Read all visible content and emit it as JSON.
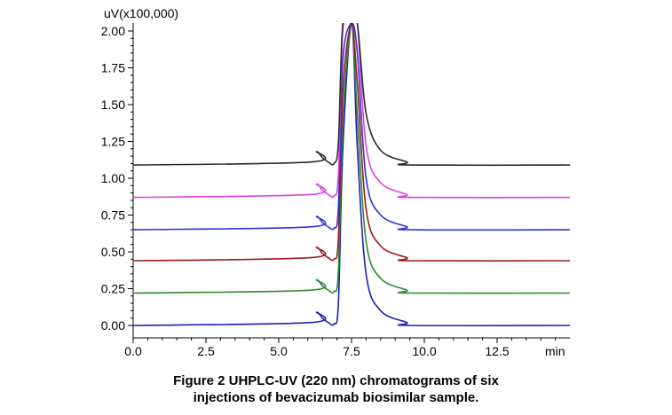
{
  "chart_data": {
    "type": "line",
    "ylabel": "uV(x100,000)",
    "xunit": "min",
    "xlim": [
      0,
      15
    ],
    "ylim": [
      0,
      2.05
    ],
    "x_ticks": [
      "0.0",
      "2.5",
      "5.0",
      "7.5",
      "10.0",
      "12.5"
    ],
    "y_ticks": [
      "0.00",
      "0.25",
      "0.50",
      "0.75",
      "1.00",
      "1.25",
      "1.50",
      "1.75",
      "2.00"
    ],
    "grid": false,
    "legend": "none",
    "series": [
      {
        "color": "#1f1fb4",
        "baseline": 0.0,
        "x": [
          0,
          6.1,
          6.3,
          6.5,
          6.7,
          6.9,
          7.05,
          7.2,
          7.5,
          7.7,
          8.0,
          8.5,
          9.4,
          9.5,
          15
        ],
        "y": [
          0.0,
          0.02,
          0.09,
          0.05,
          0.02,
          0.01,
          0.15,
          1.2,
          2.05,
          1.2,
          0.35,
          0.1,
          0.02,
          0.0,
          0.0
        ]
      },
      {
        "color": "#2e8b2e",
        "baseline": 0.22,
        "x": [
          0,
          6.1,
          6.3,
          6.5,
          6.7,
          6.9,
          7.05,
          7.2,
          7.5,
          7.7,
          8.0,
          8.5,
          9.4,
          9.5,
          15
        ],
        "y": [
          0.22,
          0.24,
          0.31,
          0.27,
          0.24,
          0.23,
          0.37,
          1.4,
          2.05,
          1.42,
          0.57,
          0.32,
          0.24,
          0.22,
          0.22
        ]
      },
      {
        "color": "#9b1c1c",
        "baseline": 0.44,
        "x": [
          0,
          6.1,
          6.3,
          6.5,
          6.7,
          6.9,
          7.05,
          7.2,
          7.5,
          7.7,
          8.0,
          8.5,
          9.4,
          9.5,
          15
        ],
        "y": [
          0.44,
          0.46,
          0.53,
          0.49,
          0.46,
          0.45,
          0.59,
          1.6,
          2.05,
          1.64,
          0.79,
          0.54,
          0.46,
          0.44,
          0.44
        ]
      },
      {
        "color": "#3030e0",
        "baseline": 0.65,
        "x": [
          0,
          6.1,
          6.3,
          6.5,
          6.7,
          6.9,
          7.05,
          7.2,
          7.5,
          7.7,
          8.0,
          8.5,
          9.4,
          9.5,
          15
        ],
        "y": [
          0.65,
          0.67,
          0.74,
          0.7,
          0.67,
          0.66,
          0.8,
          1.8,
          2.05,
          1.85,
          1.0,
          0.75,
          0.67,
          0.65,
          0.65
        ]
      },
      {
        "color": "#e040e0",
        "baseline": 0.87,
        "x": [
          0,
          6.1,
          6.3,
          6.5,
          6.7,
          6.9,
          7.05,
          7.2,
          7.5,
          7.7,
          8.0,
          8.5,
          9.4,
          9.5,
          15
        ],
        "y": [
          0.87,
          0.89,
          0.96,
          0.92,
          0.89,
          0.88,
          1.02,
          2.0,
          2.05,
          2.05,
          1.22,
          0.97,
          0.89,
          0.87,
          0.87
        ]
      },
      {
        "color": "#2a2a2a",
        "baseline": 1.09,
        "x": [
          0,
          6.1,
          6.3,
          6.5,
          6.7,
          6.9,
          7.05,
          7.2,
          7.5,
          7.7,
          8.0,
          8.5,
          9.4,
          9.5,
          15
        ],
        "y": [
          1.09,
          1.11,
          1.18,
          1.14,
          1.11,
          1.1,
          1.24,
          2.05,
          2.05,
          2.05,
          1.44,
          1.19,
          1.11,
          1.09,
          1.09
        ]
      }
    ]
  },
  "caption": {
    "line1": "Figure 2 UHPLC-UV (220 nm) chromatograms of six",
    "line2": "injections of bevacizumab biosimilar sample."
  }
}
